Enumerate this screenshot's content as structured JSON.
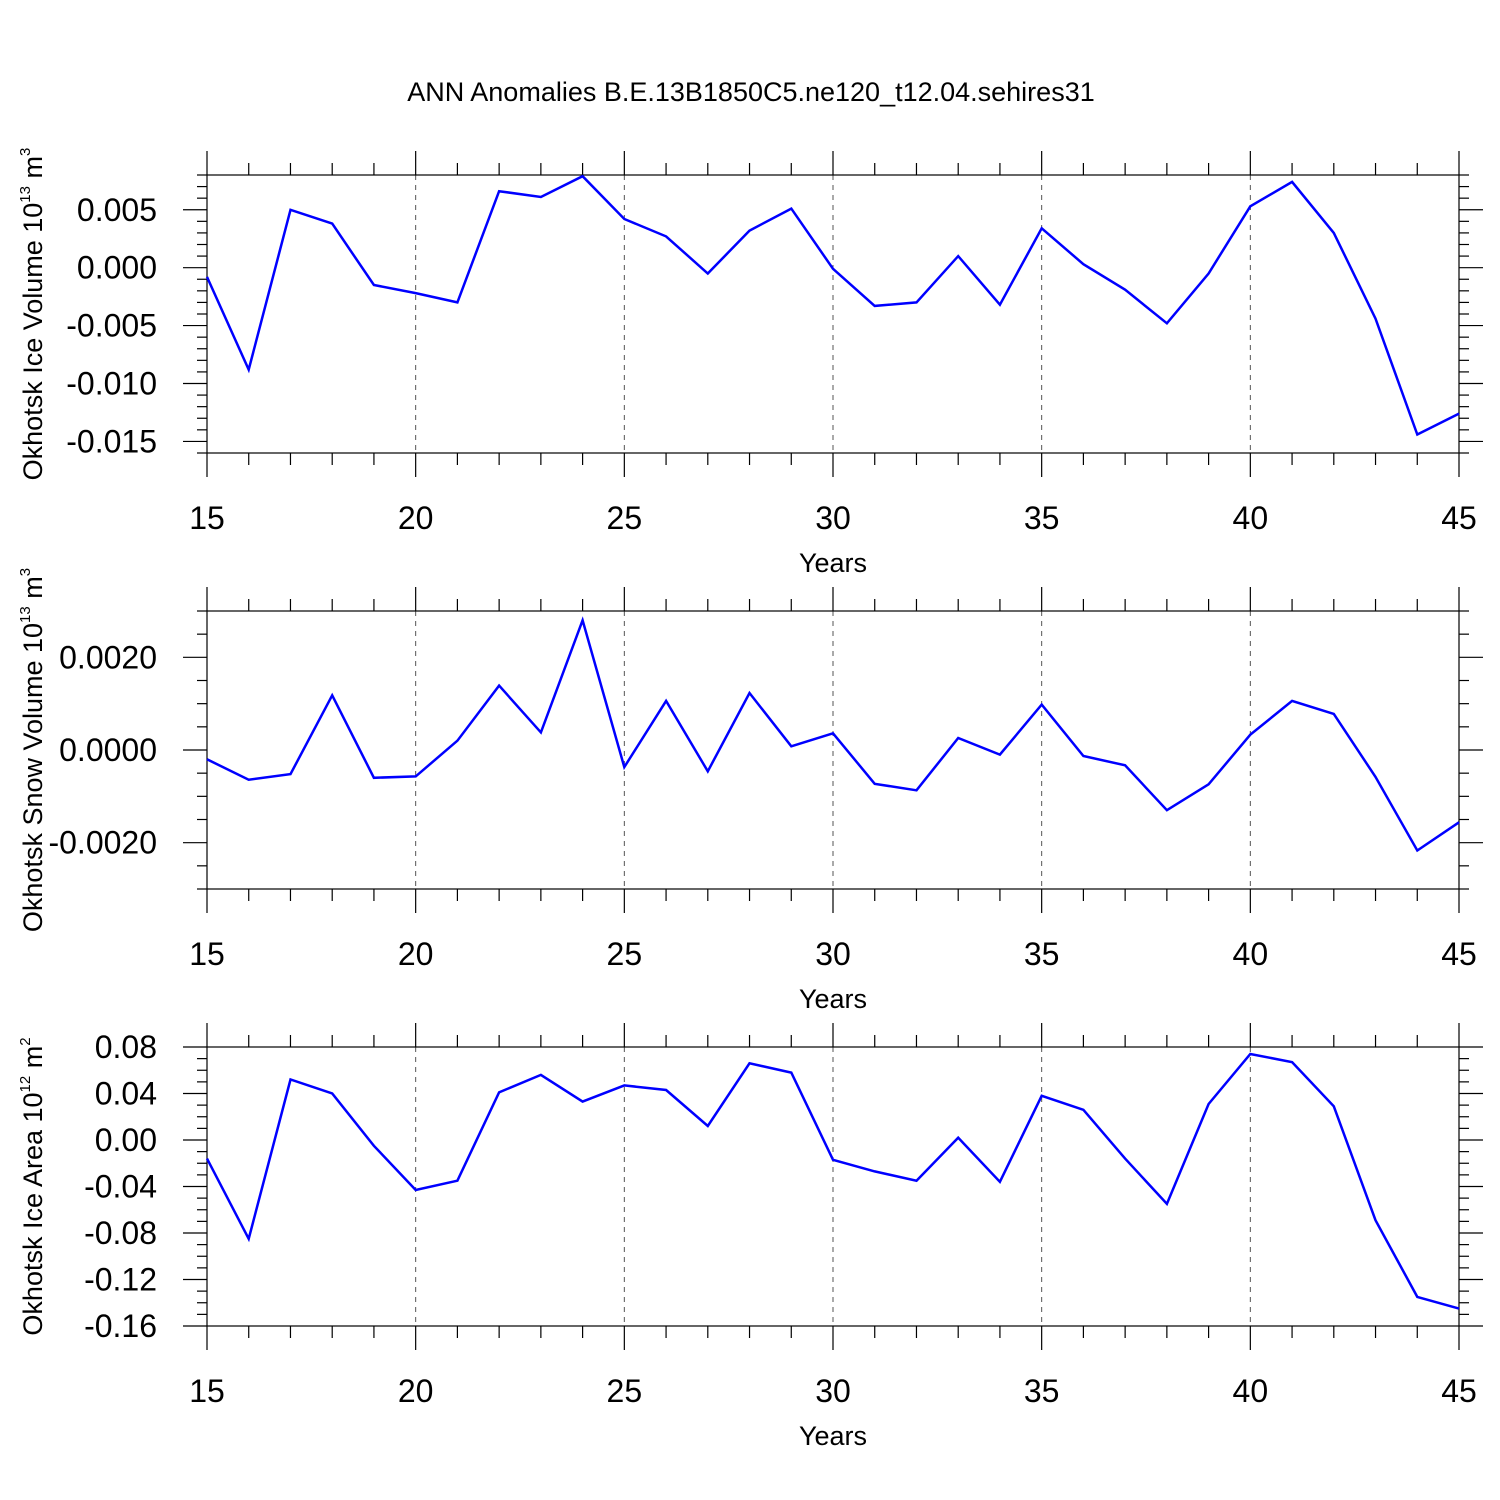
{
  "title": "ANN Anomalies B.E.13B1850C5.ne120_t12.04.sehires31",
  "colors": {
    "series": "#0000ff",
    "axis": "#000000",
    "grid": "#555555"
  },
  "chart_data": [
    {
      "type": "line",
      "ylabel": {
        "text": "Okhotsk Ice Volume 10",
        "exp": "13",
        "unit": " m",
        "unit_exp": "3"
      },
      "xlabel": "Years",
      "xlim": [
        15,
        45
      ],
      "ylim": [
        -0.016,
        0.008
      ],
      "x_ticks": [
        15,
        20,
        25,
        30,
        35,
        40,
        45
      ],
      "x_tick_labels": [
        "15",
        "20",
        "25",
        "30",
        "35",
        "40",
        "45"
      ],
      "y_ticks": [
        0.005,
        0.0,
        -0.005,
        -0.01,
        -0.015
      ],
      "y_tick_labels": [
        "0.005",
        "0.000",
        "-0.005",
        "-0.010",
        "-0.015"
      ],
      "y_minor_step": 0.001,
      "x_minor_step": 1,
      "grid": "vertical dashed at major x ticks",
      "x": [
        15,
        16,
        17,
        18,
        19,
        20,
        21,
        22,
        23,
        24,
        25,
        26,
        27,
        28,
        29,
        30,
        31,
        32,
        33,
        34,
        35,
        36,
        37,
        38,
        39,
        40,
        41,
        42,
        43,
        44,
        45
      ],
      "y": [
        -0.0008,
        -0.0088,
        0.005,
        0.0038,
        -0.0015,
        -0.0022,
        -0.003,
        0.0066,
        0.0061,
        0.0079,
        0.0042,
        0.0027,
        -0.0005,
        0.0032,
        0.0051,
        -0.0001,
        -0.0033,
        -0.003,
        0.001,
        -0.0032,
        0.0034,
        0.0003,
        -0.0019,
        -0.0048,
        -0.0005,
        0.0053,
        0.0074,
        0.003,
        -0.0044,
        -0.0144,
        -0.0126
      ]
    },
    {
      "type": "line",
      "ylabel": {
        "text": "Okhotsk Snow Volume 10",
        "exp": "13",
        "unit": " m",
        "unit_exp": "3"
      },
      "xlabel": "Years",
      "xlim": [
        15,
        45
      ],
      "ylim": [
        -0.003,
        0.003
      ],
      "x_ticks": [
        15,
        20,
        25,
        30,
        35,
        40,
        45
      ],
      "x_tick_labels": [
        "15",
        "20",
        "25",
        "30",
        "35",
        "40",
        "45"
      ],
      "y_ticks": [
        0.002,
        0.0,
        -0.002
      ],
      "y_tick_labels": [
        "0.0020",
        "0.0000",
        "-0.0020"
      ],
      "y_minor_step": 0.0005,
      "x_minor_step": 1,
      "grid": "vertical dashed at major x ticks",
      "x": [
        15,
        16,
        17,
        18,
        19,
        20,
        21,
        22,
        23,
        24,
        25,
        26,
        27,
        28,
        29,
        30,
        31,
        32,
        33,
        34,
        35,
        36,
        37,
        38,
        39,
        40,
        41,
        42,
        43,
        44,
        45
      ],
      "y": [
        -0.0002,
        -0.00064,
        -0.00052,
        0.00118,
        -0.0006,
        -0.00057,
        0.0002,
        0.00139,
        0.00038,
        0.0028,
        -0.00037,
        0.00106,
        -0.00046,
        0.00123,
        8e-05,
        0.00036,
        -0.00073,
        -0.00087,
        0.00026,
        -0.0001,
        0.00098,
        -0.00013,
        -0.00033,
        -0.0013,
        -0.00074,
        0.00033,
        0.00106,
        0.00078,
        -0.00058,
        -0.00217,
        -0.00156
      ]
    },
    {
      "type": "line",
      "ylabel": {
        "text": "Okhotsk Ice Area 10",
        "exp": "12",
        "unit": " m",
        "unit_exp": "2"
      },
      "xlabel": "Years",
      "xlim": [
        15,
        45
      ],
      "ylim": [
        -0.16,
        0.08
      ],
      "x_ticks": [
        15,
        20,
        25,
        30,
        35,
        40,
        45
      ],
      "x_tick_labels": [
        "15",
        "20",
        "25",
        "30",
        "35",
        "40",
        "45"
      ],
      "y_ticks": [
        0.08,
        0.04,
        0.0,
        -0.04,
        -0.08,
        -0.12,
        -0.16
      ],
      "y_tick_labels": [
        "0.08",
        "0.04",
        "0.00",
        "-0.04",
        "-0.08",
        "-0.12",
        "-0.16"
      ],
      "y_minor_step": 0.01,
      "x_minor_step": 1,
      "grid": "vertical dashed at major x ticks",
      "x": [
        15,
        16,
        17,
        18,
        19,
        20,
        21,
        22,
        23,
        24,
        25,
        26,
        27,
        28,
        29,
        30,
        31,
        32,
        33,
        34,
        35,
        36,
        37,
        38,
        39,
        40,
        41,
        42,
        43,
        44,
        45
      ],
      "y": [
        -0.016,
        -0.085,
        0.052,
        0.04,
        -0.005,
        -0.043,
        -0.035,
        0.041,
        0.056,
        0.033,
        0.047,
        0.043,
        0.012,
        0.066,
        0.058,
        -0.017,
        -0.027,
        -0.035,
        0.002,
        -0.036,
        0.038,
        0.026,
        -0.016,
        -0.055,
        0.031,
        0.074,
        0.067,
        0.029,
        -0.069,
        -0.135,
        -0.145
      ]
    }
  ]
}
